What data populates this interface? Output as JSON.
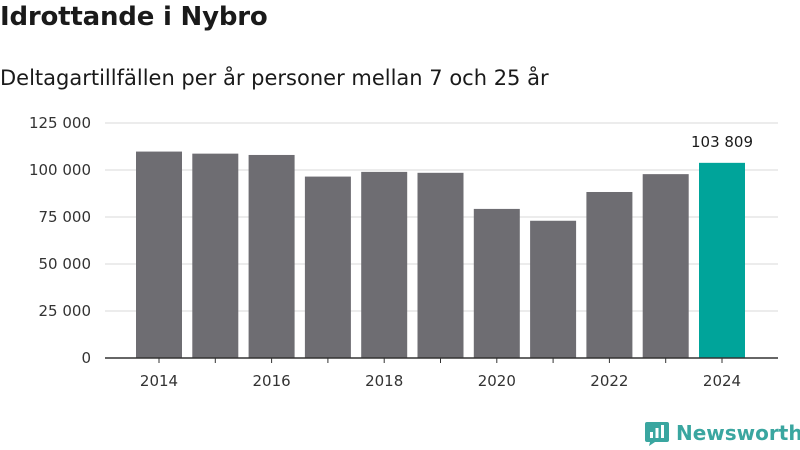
{
  "header": {
    "title": "Idrottande i Nybro",
    "subtitle": "Deltagartillfällen per år personer mellan 7 och 25 år"
  },
  "brand": {
    "name": "Newsworthy",
    "icon": "newsworthy-logo-icon",
    "color": "#3aa6a0"
  },
  "colors": {
    "bar": "#6e6d72",
    "highlight": "#00a49a",
    "grid": "#d9d9d9",
    "axis": "#333333"
  },
  "chart_data": {
    "type": "bar",
    "title": "Idrottande i Nybro",
    "subtitle": "Deltagartillfällen per år personer mellan 7 och 25 år",
    "xlabel": "",
    "ylabel": "",
    "categories": [
      "2014",
      "2015",
      "2016",
      "2017",
      "2018",
      "2019",
      "2020",
      "2021",
      "2022",
      "2023",
      "2024"
    ],
    "values": [
      109800,
      108700,
      108000,
      96500,
      99000,
      98500,
      79300,
      73000,
      88300,
      97800,
      103809
    ],
    "x_tick_labels": [
      "2014",
      "2016",
      "2018",
      "2020",
      "2022",
      "2024"
    ],
    "y_ticks": [
      0,
      25000,
      50000,
      75000,
      100000,
      125000
    ],
    "y_tick_labels": [
      "0",
      "25 000",
      "50 000",
      "75 000",
      "100 000",
      "125 000"
    ],
    "ylim": [
      0,
      125000
    ],
    "grid": true,
    "highlight_index": 10,
    "data_labels": [
      {
        "index": 10,
        "text": "103 809"
      }
    ]
  }
}
